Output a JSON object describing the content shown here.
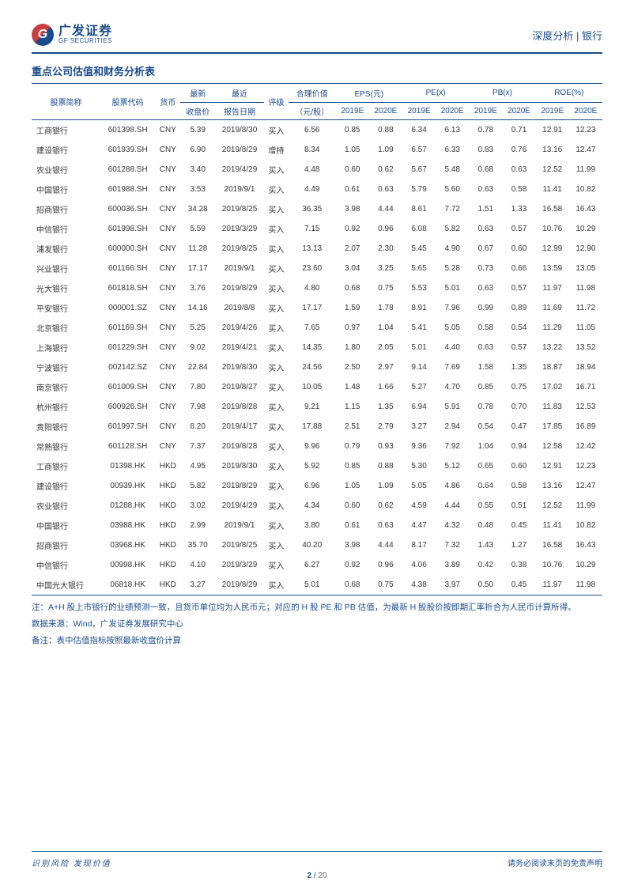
{
  "logo": {
    "cn": "广发证券",
    "en": "GF SECURITIES"
  },
  "header_right": "深度分析 | 银行",
  "table_title": "重点公司估值和财务分析表",
  "columns": {
    "name": "股票简称",
    "code": "股票代码",
    "currency": "货币",
    "price_top": "最新",
    "price_bot": "收盘价",
    "date_top": "最近",
    "date_bot": "报告日期",
    "rating": "评级",
    "fair_top": "合理价值",
    "fair_bot": "（元/股）",
    "eps": "EPS(元)",
    "pe": "PE(x)",
    "pb": "PB(x)",
    "roe": "ROE(%)",
    "y2019": "2019E",
    "y2020": "2020E"
  },
  "rows": [
    {
      "name": "工商银行",
      "code": "601398.SH",
      "cur": "CNY",
      "price": "5.39",
      "date": "2019/8/30",
      "rating": "买入",
      "fair": "6.56",
      "eps19": "0.85",
      "eps20": "0.88",
      "pe19": "6.34",
      "pe20": "6.13",
      "pb19": "0.78",
      "pb20": "0.71",
      "roe19": "12.91",
      "roe20": "12.23"
    },
    {
      "name": "建设银行",
      "code": "601939.SH",
      "cur": "CNY",
      "price": "6.90",
      "date": "2019/8/29",
      "rating": "增持",
      "fair": "8.34",
      "eps19": "1.05",
      "eps20": "1.09",
      "pe19": "6.57",
      "pe20": "6.33",
      "pb19": "0.83",
      "pb20": "0.76",
      "roe19": "13.16",
      "roe20": "12.47"
    },
    {
      "name": "农业银行",
      "code": "601288.SH",
      "cur": "CNY",
      "price": "3.40",
      "date": "2019/4/29",
      "rating": "买入",
      "fair": "4.48",
      "eps19": "0.60",
      "eps20": "0.62",
      "pe19": "5.67",
      "pe20": "5.48",
      "pb19": "0.68",
      "pb20": "0.63",
      "roe19": "12.52",
      "roe20": "11.99"
    },
    {
      "name": "中国银行",
      "code": "601988.SH",
      "cur": "CNY",
      "price": "3.53",
      "date": "2019/9/1",
      "rating": "买入",
      "fair": "4.49",
      "eps19": "0.61",
      "eps20": "0.63",
      "pe19": "5.79",
      "pe20": "5.60",
      "pb19": "0.63",
      "pb20": "0.58",
      "roe19": "11.41",
      "roe20": "10.82"
    },
    {
      "name": "招商银行",
      "code": "600036.SH",
      "cur": "CNY",
      "price": "34.28",
      "date": "2019/8/25",
      "rating": "买入",
      "fair": "36.35",
      "eps19": "3.98",
      "eps20": "4.44",
      "pe19": "8.61",
      "pe20": "7.72",
      "pb19": "1.51",
      "pb20": "1.33",
      "roe19": "16.58",
      "roe20": "16.43"
    },
    {
      "name": "中信银行",
      "code": "601998.SH",
      "cur": "CNY",
      "price": "5.59",
      "date": "2019/3/29",
      "rating": "买入",
      "fair": "7.15",
      "eps19": "0.92",
      "eps20": "0.96",
      "pe19": "6.08",
      "pe20": "5.82",
      "pb19": "0.63",
      "pb20": "0.57",
      "roe19": "10.76",
      "roe20": "10.29"
    },
    {
      "name": "浦发银行",
      "code": "600000.SH",
      "cur": "CNY",
      "price": "11.28",
      "date": "2019/8/25",
      "rating": "买入",
      "fair": "13.13",
      "eps19": "2.07",
      "eps20": "2.30",
      "pe19": "5.45",
      "pe20": "4.90",
      "pb19": "0.67",
      "pb20": "0.60",
      "roe19": "12.99",
      "roe20": "12.90"
    },
    {
      "name": "兴业银行",
      "code": "601166.SH",
      "cur": "CNY",
      "price": "17.17",
      "date": "2019/9/1",
      "rating": "买入",
      "fair": "23.60",
      "eps19": "3.04",
      "eps20": "3.25",
      "pe19": "5.65",
      "pe20": "5.28",
      "pb19": "0.73",
      "pb20": "0.66",
      "roe19": "13.59",
      "roe20": "13.05"
    },
    {
      "name": "光大银行",
      "code": "601818.SH",
      "cur": "CNY",
      "price": "3.76",
      "date": "2019/8/29",
      "rating": "买入",
      "fair": "4.80",
      "eps19": "0.68",
      "eps20": "0.75",
      "pe19": "5.53",
      "pe20": "5.01",
      "pb19": "0.63",
      "pb20": "0.57",
      "roe19": "11.97",
      "roe20": "11.98"
    },
    {
      "name": "平安银行",
      "code": "000001.SZ",
      "cur": "CNY",
      "price": "14.16",
      "date": "2019/8/8",
      "rating": "买入",
      "fair": "17.17",
      "eps19": "1.59",
      "eps20": "1.78",
      "pe19": "8.91",
      "pe20": "7.96",
      "pb19": "0.99",
      "pb20": "0.89",
      "roe19": "11.69",
      "roe20": "11.72"
    },
    {
      "name": "北京银行",
      "code": "601169.SH",
      "cur": "CNY",
      "price": "5.25",
      "date": "2019/4/26",
      "rating": "买入",
      "fair": "7.65",
      "eps19": "0.97",
      "eps20": "1.04",
      "pe19": "5.41",
      "pe20": "5.05",
      "pb19": "0.58",
      "pb20": "0.54",
      "roe19": "11.29",
      "roe20": "11.05"
    },
    {
      "name": "上海银行",
      "code": "601229.SH",
      "cur": "CNY",
      "price": "9.02",
      "date": "2019/4/21",
      "rating": "买入",
      "fair": "14.35",
      "eps19": "1.80",
      "eps20": "2.05",
      "pe19": "5.01",
      "pe20": "4.40",
      "pb19": "0.63",
      "pb20": "0.57",
      "roe19": "13.22",
      "roe20": "13.52"
    },
    {
      "name": "宁波银行",
      "code": "002142.SZ",
      "cur": "CNY",
      "price": "22.84",
      "date": "2019/8/30",
      "rating": "买入",
      "fair": "24.56",
      "eps19": "2.50",
      "eps20": "2.97",
      "pe19": "9.14",
      "pe20": "7.69",
      "pb19": "1.58",
      "pb20": "1.35",
      "roe19": "18.87",
      "roe20": "18.94"
    },
    {
      "name": "南京银行",
      "code": "601009.SH",
      "cur": "CNY",
      "price": "7.80",
      "date": "2019/8/27",
      "rating": "买入",
      "fair": "10.05",
      "eps19": "1.48",
      "eps20": "1.66",
      "pe19": "5.27",
      "pe20": "4.70",
      "pb19": "0.85",
      "pb20": "0.75",
      "roe19": "17.02",
      "roe20": "16.71"
    },
    {
      "name": "杭州银行",
      "code": "600926.SH",
      "cur": "CNY",
      "price": "7.98",
      "date": "2019/8/28",
      "rating": "买入",
      "fair": "9.21",
      "eps19": "1.15",
      "eps20": "1.35",
      "pe19": "6.94",
      "pe20": "5.91",
      "pb19": "0.78",
      "pb20": "0.70",
      "roe19": "11.83",
      "roe20": "12.53"
    },
    {
      "name": "贵阳银行",
      "code": "601997.SH",
      "cur": "CNY",
      "price": "8.20",
      "date": "2019/4/17",
      "rating": "买入",
      "fair": "17.88",
      "eps19": "2.51",
      "eps20": "2.79",
      "pe19": "3.27",
      "pe20": "2.94",
      "pb19": "0.54",
      "pb20": "0.47",
      "roe19": "17.85",
      "roe20": "16.89"
    },
    {
      "name": "常熟银行",
      "code": "601128.SH",
      "cur": "CNY",
      "price": "7.37",
      "date": "2019/8/28",
      "rating": "买入",
      "fair": "9.96",
      "eps19": "0.79",
      "eps20": "0.93",
      "pe19": "9.36",
      "pe20": "7.92",
      "pb19": "1.04",
      "pb20": "0.94",
      "roe19": "12.58",
      "roe20": "12.42"
    },
    {
      "name": "工商银行",
      "code": "01398.HK",
      "cur": "HKD",
      "price": "4.95",
      "date": "2019/8/30",
      "rating": "买入",
      "fair": "5.92",
      "eps19": "0.85",
      "eps20": "0.88",
      "pe19": "5.30",
      "pe20": "5.12",
      "pb19": "0.65",
      "pb20": "0.60",
      "roe19": "12.91",
      "roe20": "12.23"
    },
    {
      "name": "建设银行",
      "code": "00939.HK",
      "cur": "HKD",
      "price": "5.82",
      "date": "2019/8/29",
      "rating": "买入",
      "fair": "6.96",
      "eps19": "1.05",
      "eps20": "1.09",
      "pe19": "5.05",
      "pe20": "4.86",
      "pb19": "0.64",
      "pb20": "0.58",
      "roe19": "13.16",
      "roe20": "12.47"
    },
    {
      "name": "农业银行",
      "code": "01288.HK",
      "cur": "HKD",
      "price": "3.02",
      "date": "2019/4/29",
      "rating": "买入",
      "fair": "4.34",
      "eps19": "0.60",
      "eps20": "0.62",
      "pe19": "4.59",
      "pe20": "4.44",
      "pb19": "0.55",
      "pb20": "0.51",
      "roe19": "12.52",
      "roe20": "11.99"
    },
    {
      "name": "中国银行",
      "code": "03988.HK",
      "cur": "HKD",
      "price": "2.99",
      "date": "2019/9/1",
      "rating": "买入",
      "fair": "3.80",
      "eps19": "0.61",
      "eps20": "0.63",
      "pe19": "4.47",
      "pe20": "4.32",
      "pb19": "0.48",
      "pb20": "0.45",
      "roe19": "11.41",
      "roe20": "10.82"
    },
    {
      "name": "招商银行",
      "code": "03968.HK",
      "cur": "HKD",
      "price": "35.70",
      "date": "2019/8/25",
      "rating": "买入",
      "fair": "40.20",
      "eps19": "3.98",
      "eps20": "4.44",
      "pe19": "8.17",
      "pe20": "7.32",
      "pb19": "1.43",
      "pb20": "1.27",
      "roe19": "16.58",
      "roe20": "16.43"
    },
    {
      "name": "中信银行",
      "code": "00998.HK",
      "cur": "HKD",
      "price": "4.10",
      "date": "2019/3/29",
      "rating": "买入",
      "fair": "6.27",
      "eps19": "0.92",
      "eps20": "0.96",
      "pe19": "4.06",
      "pe20": "3.89",
      "pb19": "0.42",
      "pb20": "0.38",
      "roe19": "10.76",
      "roe20": "10.29"
    },
    {
      "name": "中国光大银行",
      "code": "06818.HK",
      "cur": "HKD",
      "price": "3.27",
      "date": "2019/8/29",
      "rating": "买入",
      "fair": "5.01",
      "eps19": "0.68",
      "eps20": "0.75",
      "pe19": "4.38",
      "pe20": "3.97",
      "pb19": "0.50",
      "pb20": "0.45",
      "roe19": "11.97",
      "roe20": "11.98"
    }
  ],
  "notes": [
    "注：A+H 股上市银行的业绩预测一致，且货币单位均为人民币元；对应的 H 股 PE 和 PB 估值，为最新 H 股股价按即期汇率折合为人民币计算所得。",
    "数据来源：Wind，广发证券发展研究中心",
    "备注：表中估值指标按照最新收盘价计算"
  ],
  "footer": {
    "left": "识别风险  发现价值",
    "right": "请务必阅读末页的免责声明",
    "page_current": "2",
    "page_sep": " / ",
    "page_total": "20"
  }
}
